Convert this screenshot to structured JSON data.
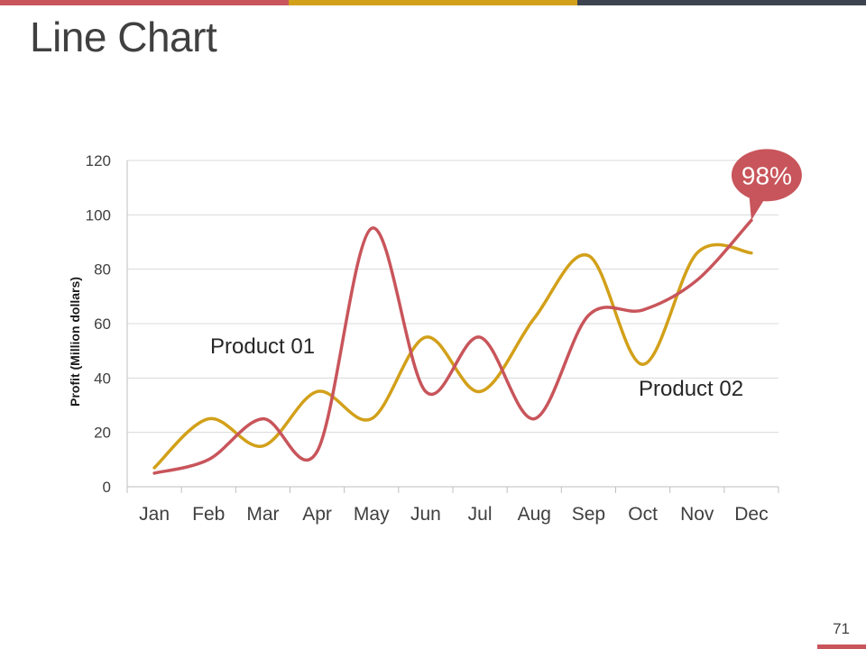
{
  "slide": {
    "title": "Line Chart",
    "page_number": "71"
  },
  "colors": {
    "red": "#C8555B",
    "gold": "#D2A019",
    "navy": "#3D4450",
    "grid": "#D9D9D9",
    "axis": "#BFBFBF",
    "text": "#404040"
  },
  "chart_data": {
    "type": "line",
    "title": "",
    "xlabel": "",
    "ylabel": "Profit  (Million dollars)",
    "ylim": [
      0,
      120
    ],
    "yticks": [
      0,
      20,
      40,
      60,
      80,
      100,
      120
    ],
    "grid": true,
    "smooth": true,
    "categories": [
      "Jan",
      "Feb",
      "Mar",
      "Apr",
      "May",
      "Jun",
      "Jul",
      "Aug",
      "Sep",
      "Oct",
      "Nov",
      "Dec"
    ],
    "series": [
      {
        "name": "Product 01",
        "color": "#C8555B",
        "values": [
          5,
          10,
          25,
          13,
          95,
          35,
          55,
          25,
          63,
          65,
          76,
          98
        ]
      },
      {
        "name": "Product 02",
        "color": "#D2A019",
        "values": [
          7,
          25,
          15,
          35,
          25,
          55,
          35,
          62,
          85,
          45,
          86,
          86
        ]
      }
    ],
    "callout": {
      "text": "98%",
      "series": "Product 01",
      "category": "Dec",
      "value": 98
    }
  }
}
